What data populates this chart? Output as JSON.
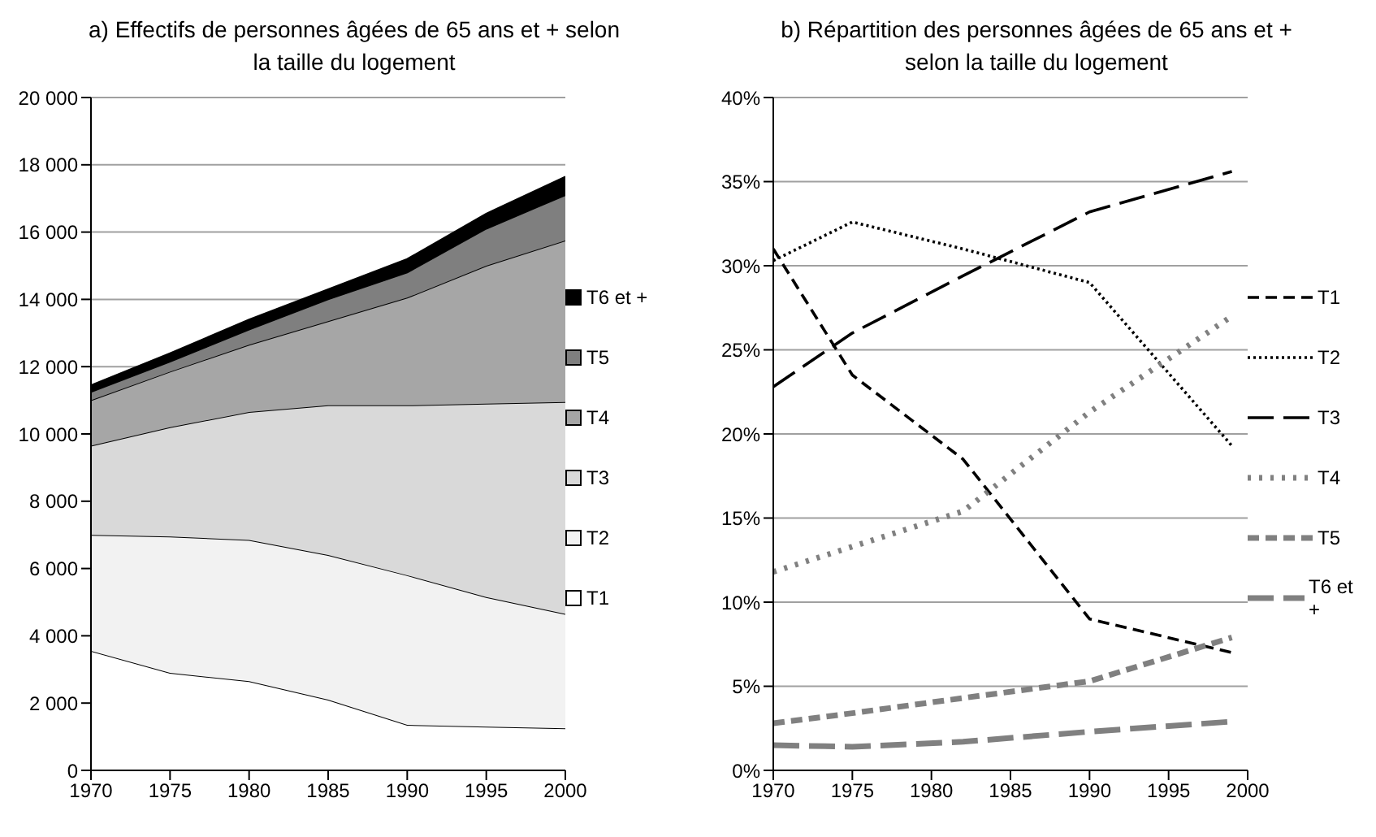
{
  "chart_data": [
    {
      "type": "area",
      "title": "a) Effectifs de personnes âgées de 65 ans et + selon la taille du logement",
      "stacked": true,
      "grid": "y",
      "legend": "right",
      "x": [
        1970,
        1975,
        1980,
        1985,
        1990,
        1995,
        2000
      ],
      "xlim": [
        1970,
        2000
      ],
      "xticks": [
        1970,
        1975,
        1980,
        1985,
        1990,
        1995,
        2000
      ],
      "ylim": [
        0,
        20000
      ],
      "yticks": [
        0,
        {
          "value": 2000,
          "label": "2 000"
        },
        {
          "value": 4000,
          "label": "4 000"
        },
        {
          "value": 6000,
          "label": "6 000"
        },
        {
          "value": 8000,
          "label": "8 000"
        },
        {
          "value": 10000,
          "label": "10 000"
        },
        {
          "value": 12000,
          "label": "12 000"
        },
        {
          "value": 14000,
          "label": "14 000"
        },
        {
          "value": 16000,
          "label": "16 000"
        },
        {
          "value": 18000,
          "label": "18 000"
        },
        {
          "value": 20000,
          "label": "20 000"
        }
      ],
      "series": [
        {
          "name": "T1",
          "color": "#ffffff",
          "values": [
            3550,
            2900,
            2650,
            2100,
            1350,
            1300,
            1250
          ]
        },
        {
          "name": "T2",
          "color": "#f2f2f2",
          "values": [
            3450,
            4050,
            4200,
            4300,
            4450,
            3850,
            3400
          ]
        },
        {
          "name": "T3",
          "color": "#d9d9d9",
          "values": [
            2650,
            3250,
            3800,
            4450,
            5050,
            5750,
            6300
          ]
        },
        {
          "name": "T4",
          "color": "#a6a6a6",
          "values": [
            1350,
            1650,
            2000,
            2500,
            3200,
            4100,
            4800
          ]
        },
        {
          "name": "T5",
          "color": "#7f7f7f",
          "values": [
            250,
            300,
            450,
            650,
            750,
            1100,
            1350
          ]
        },
        {
          "name": "T6 et +",
          "color": "#000000",
          "values": [
            200,
            250,
            300,
            300,
            400,
            450,
            550
          ]
        }
      ]
    },
    {
      "type": "line",
      "title": "b) Répartition des personnes âgées de 65 ans et + selon la taille du logement",
      "grid": "y",
      "legend": "right",
      "marker": "none",
      "x": [
        1970,
        1975,
        1982,
        1990,
        1999
      ],
      "xlim": [
        1970,
        2000
      ],
      "xticks": [
        1970,
        1975,
        1980,
        1985,
        1990,
        1995,
        2000
      ],
      "ylim": [
        0,
        40
      ],
      "yticks": [
        {
          "value": 0,
          "label": "0%"
        },
        {
          "value": 5,
          "label": "5%"
        },
        {
          "value": 10,
          "label": "10%"
        },
        {
          "value": 15,
          "label": "15%"
        },
        {
          "value": 20,
          "label": "20%"
        },
        {
          "value": 25,
          "label": "25%"
        },
        {
          "value": 30,
          "label": "30%"
        },
        {
          "value": 35,
          "label": "35%"
        },
        {
          "value": 40,
          "label": "40%"
        }
      ],
      "series": [
        {
          "name": "T1",
          "color": "#000000",
          "line_style": "dashed",
          "values": [
            31,
            23.5,
            18.5,
            9,
            7
          ]
        },
        {
          "name": "T2",
          "color": "#000000",
          "line_style": "dotted",
          "values": [
            30.3,
            32.6,
            31,
            29,
            19.3
          ]
        },
        {
          "name": "T3",
          "color": "#000000",
          "line_style": "dashed",
          "values": [
            22.8,
            26,
            29.4,
            33.2,
            35.6
          ]
        },
        {
          "name": "T4",
          "color": "#808080",
          "line_style": "dotted",
          "values": [
            11.8,
            13.3,
            15.4,
            21.3,
            27
          ]
        },
        {
          "name": "T5",
          "color": "#808080",
          "line_style": "dashed",
          "values": [
            2.8,
            3.4,
            4.3,
            5.3,
            7.9
          ]
        },
        {
          "name": "T6 et +",
          "color": "#808080",
          "line_style": "dashed",
          "values": [
            1.5,
            1.4,
            1.7,
            2.3,
            2.9
          ]
        }
      ]
    }
  ]
}
